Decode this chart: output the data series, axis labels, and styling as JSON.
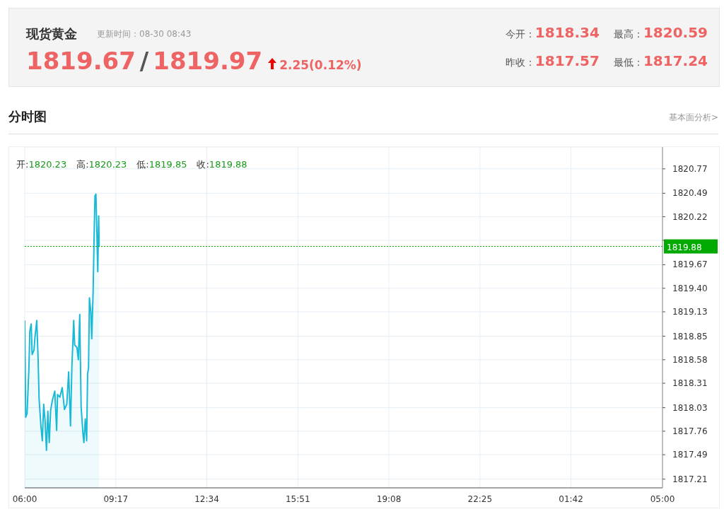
{
  "chart_data": {
    "type": "area",
    "title": "现货黄金",
    "subtitle": "更新时间：08-30 08:43",
    "annotations": [
      "1819.67",
      "/",
      "1819.97",
      "2.25(0.12%)",
      "今开：",
      "1818.34",
      "最高：",
      "1820.59",
      "昨收：",
      "1817.57",
      "最低：",
      "1817.24",
      "分时图",
      "基本面分析>",
      "开:",
      "1820.23",
      "高:",
      "1820.23",
      "低:",
      "1819.85",
      "收:",
      "1819.88"
    ],
    "x": [
      "--08-30T06:00",
      "--08-30T06:02",
      "--08-30T06:05",
      "--08-30T06:09",
      "--08-30T06:11",
      "--08-30T06:14",
      "--08-30T06:16",
      "--08-30T06:20",
      "--08-30T06:22",
      "--08-30T06:26",
      "--08-30T06:29",
      "--08-30T06:31",
      "--08-30T06:35",
      "--08-30T06:38",
      "--08-30T06:41",
      "--08-30T06:44",
      "--08-30T06:47",
      "--08-30T06:50",
      "--08-30T06:53",
      "--08-30T06:56",
      "--08-30T07:00",
      "--08-30T07:05",
      "--08-30T07:09",
      "--08-30T07:11",
      "--08-30T07:16",
      "--08-30T07:21",
      "--08-30T07:26",
      "--08-30T07:31",
      "--08-30T07:35",
      "--08-30T07:39",
      "--08-30T07:42",
      "--08-30T07:46",
      "--08-30T07:48",
      "--08-30T07:53",
      "--08-30T07:56",
      "--08-30T07:59",
      "--08-30T08:02",
      "--08-30T08:06",
      "--08-30T08:08",
      "--08-30T08:11",
      "--08-30T08:14",
      "--08-30T08:16",
      "--08-30T08:18",
      "--08-30T08:20",
      "--08-30T08:23",
      "--08-30T08:25",
      "--08-30T08:28",
      "--08-30T08:30",
      "--08-30T08:32",
      "--08-30T08:34",
      "--08-30T08:36",
      "--08-30T08:38",
      "--08-30T08:40",
      "--08-30T08:41"
    ],
    "series": [
      {
        "color": "#1ab9d6",
        "values": [
          1819.03,
          1817.92,
          1817.96,
          1818.48,
          1818.91,
          1818.99,
          1818.64,
          1818.69,
          1818.83,
          1819.03,
          1818.58,
          1818.14,
          1817.82,
          1817.65,
          1818.07,
          1817.88,
          1817.54,
          1817.99,
          1817.63,
          1818.0,
          1818.12,
          1818.22,
          1817.77,
          1818.18,
          1818.15,
          1818.26,
          1818.01,
          1818.07,
          1818.44,
          1817.82,
          1818.5,
          1819.03,
          1818.75,
          1818.72,
          1818.58,
          1819.1,
          1818.04,
          1817.73,
          1817.63,
          1817.9,
          1817.65,
          1818.42,
          1818.48,
          1819.29,
          1819.13,
          1818.82,
          1819.37,
          1819.97,
          1820.46,
          1820.48,
          1820.06,
          1819.59,
          1820.23,
          1819.88
        ]
      }
    ],
    "xlim": [
      "--08-30T06:00",
      "--08-31T05:00"
    ],
    "xticks": [
      {
        "value": "--08-30T06:00",
        "label": "06:00"
      },
      {
        "value": "--08-30T09:17",
        "label": "09:17"
      },
      {
        "value": "--08-30T12:34",
        "label": "12:34"
      },
      {
        "value": "--08-30T15:51",
        "label": "15:51"
      },
      {
        "value": "--08-30T19:08",
        "label": "19:08"
      },
      {
        "value": "--08-30T22:25",
        "label": "22:25"
      },
      {
        "value": "--08-31T01:42",
        "label": "01:42"
      },
      {
        "value": "--08-31T05:00",
        "label": "05:00"
      }
    ],
    "ylim": [
      1817.11,
      1821.02
    ],
    "yticks": [
      1817.21,
      1817.49,
      1817.76,
      1818.03,
      1818.31,
      1818.58,
      1818.85,
      1819.13,
      {
        "value": 1819.4,
        "label": "1819.40"
      },
      1819.67,
      {
        "value": 1819.95,
        "label": null
      },
      1820.22,
      1820.49,
      1820.77
    ],
    "ref_lines": [
      {
        "axis": "y",
        "value": 1819.88,
        "label": "1819.88",
        "color": "#00aa00",
        "line_style": "dotted"
      }
    ],
    "grid": true,
    "legend": false,
    "marker": "none",
    "line_style": "solid"
  }
}
